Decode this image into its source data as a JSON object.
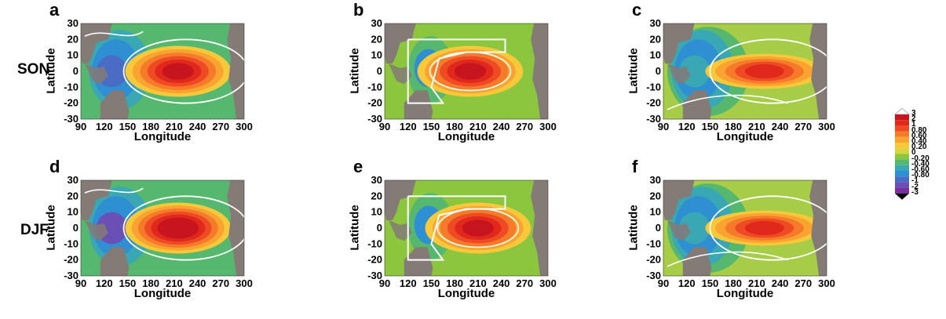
{
  "row_labels": [
    "SON",
    "DJF"
  ],
  "colorbar": {
    "labels": [
      "3",
      "2",
      "1",
      "0.80",
      "0.60",
      "0.40",
      "0.20",
      "0",
      "-0.20",
      "-0.40",
      "-0.60",
      "-0.80",
      "-1",
      "-2",
      "-3"
    ],
    "colors": [
      "#c8141e",
      "#e0281c",
      "#ee4a24",
      "#f57a2a",
      "#f9a431",
      "#f7c93a",
      "#d6d53d",
      "#8cc63f",
      "#56b76e",
      "#3aa8b4",
      "#2e8fd2",
      "#4a6cc5",
      "#6a4fb4",
      "#7a2e9e",
      "#000000"
    ],
    "top_cap": "#ffffff",
    "bottom_cap": "#000000"
  },
  "chart_data": [
    {
      "type": "heatmap",
      "panel": "a",
      "row": "SON",
      "xlabel": "Longitude",
      "ylabel": "Latitude",
      "xlim": [
        90,
        300
      ],
      "ylim": [
        -30,
        30
      ],
      "xticks": [
        "90",
        "120",
        "150",
        "180",
        "210",
        "240",
        "270",
        "300"
      ],
      "yticks": [
        "30",
        "20",
        "10",
        "0",
        "-10",
        "-20",
        "-30"
      ],
      "anomaly_center_lon": 215,
      "anomaly_peak": 2,
      "west_pacific_minimum": -0.8,
      "contour_region": "full"
    },
    {
      "type": "heatmap",
      "panel": "b",
      "row": "SON",
      "xlabel": "Longitude",
      "ylabel": "Latitude",
      "xlim": [
        90,
        300
      ],
      "ylim": [
        -30,
        30
      ],
      "xticks": [
        "90",
        "120",
        "150",
        "180",
        "210",
        "240",
        "270",
        "300"
      ],
      "yticks": [
        "30",
        "20",
        "10",
        "0",
        "-10",
        "-20",
        "-30"
      ],
      "anomaly_center_lon": 200,
      "anomaly_peak": 2,
      "west_pacific_minimum": -0.6,
      "contour_region": "box"
    },
    {
      "type": "heatmap",
      "panel": "c",
      "row": "SON",
      "xlabel": "Longitude",
      "ylabel": "Latitude",
      "xlim": [
        90,
        300
      ],
      "ylim": [
        -30,
        30
      ],
      "xticks": [
        "90",
        "120",
        "150",
        "180",
        "210",
        "240",
        "270",
        "300"
      ],
      "yticks": [
        "30",
        "20",
        "10",
        "0",
        "-10",
        "-20",
        "-30"
      ],
      "anomaly_center_lon": 220,
      "anomaly_peak": 1,
      "west_pacific_minimum": -0.4,
      "contour_region": "full"
    },
    {
      "type": "heatmap",
      "panel": "d",
      "row": "DJF",
      "xlabel": "Longitude",
      "ylabel": "Latitude",
      "xlim": [
        90,
        300
      ],
      "ylim": [
        -30,
        30
      ],
      "xticks": [
        "90",
        "120",
        "150",
        "180",
        "210",
        "240",
        "270",
        "300"
      ],
      "yticks": [
        "30",
        "20",
        "10",
        "0",
        "-10",
        "-20",
        "-30"
      ],
      "anomaly_center_lon": 215,
      "anomaly_peak": 3,
      "west_pacific_minimum": -1,
      "contour_region": "full"
    },
    {
      "type": "heatmap",
      "panel": "e",
      "row": "DJF",
      "xlabel": "Longitude",
      "ylabel": "Latitude",
      "xlim": [
        90,
        300
      ],
      "ylim": [
        -30,
        30
      ],
      "xticks": [
        "90",
        "120",
        "150",
        "180",
        "210",
        "240",
        "270",
        "300"
      ],
      "yticks": [
        "30",
        "20",
        "10",
        "0",
        "-10",
        "-20",
        "-30"
      ],
      "anomaly_center_lon": 210,
      "anomaly_peak": 2,
      "west_pacific_minimum": -0.6,
      "contour_region": "box"
    },
    {
      "type": "heatmap",
      "panel": "f",
      "row": "DJF",
      "xlabel": "Longitude",
      "ylabel": "Latitude",
      "xlim": [
        90,
        300
      ],
      "ylim": [
        -30,
        30
      ],
      "xticks": [
        "90",
        "120",
        "150",
        "180",
        "210",
        "240",
        "270",
        "300"
      ],
      "yticks": [
        "30",
        "20",
        "10",
        "0",
        "-10",
        "-20",
        "-30"
      ],
      "anomaly_center_lon": 220,
      "anomaly_peak": 1,
      "west_pacific_minimum": -0.4,
      "contour_region": "full"
    }
  ]
}
